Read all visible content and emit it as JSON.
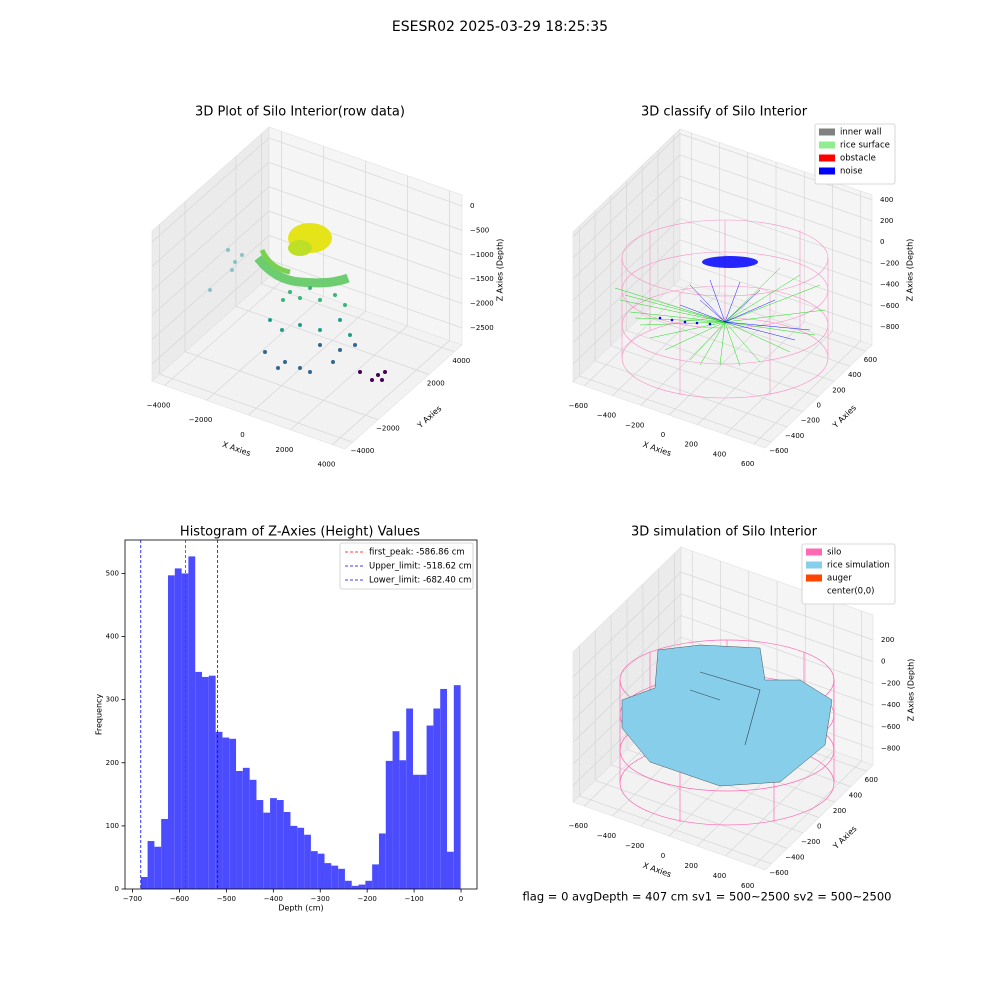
{
  "suptitle": "ESESR02 2025-03-29 18:25:35",
  "footer_text": "flag = 0     avgDepth = 407 cm  sv1 = 500~2500  sv2 = 500~2500",
  "chart_data": [
    {
      "type": "3d",
      "title": "3D Plot of Silo Interior(row data)",
      "x_label": "X Axies",
      "y_label": "Y Axies",
      "z_label": "Z Axies (Depth)",
      "xlim": [
        -4600,
        4600
      ],
      "ylim": [
        -4600,
        4600
      ],
      "zlim": [
        -2850,
        225
      ],
      "xticks": [
        {
          "value": -4000,
          "label": "−4000"
        },
        {
          "value": -2000,
          "label": "−2000"
        },
        0,
        2000,
        4000
      ],
      "yticks": [
        {
          "value": -4000,
          "label": "−4000"
        },
        {
          "value": -2000,
          "label": "−2000"
        },
        2000,
        4000
      ],
      "zticks": [
        0,
        {
          "value": -500,
          "label": "−500"
        },
        {
          "value": -1000,
          "label": "−1000"
        },
        {
          "value": -1500,
          "label": "−1500"
        },
        {
          "value": -2000,
          "label": "−2000"
        },
        {
          "value": -2500,
          "label": "−2500"
        }
      ]
    },
    {
      "type": "3d",
      "title": "3D classify of Silo Interior",
      "x_label": "X Axies",
      "y_label": "Y Axies",
      "z_label": "Z Axies (Depth)",
      "xlim": [
        -680,
        680
      ],
      "ylim": [
        -680,
        680
      ],
      "zlim": [
        -970,
        445
      ],
      "xticks": [
        {
          "value": -600,
          "label": "−600"
        },
        {
          "value": -400,
          "label": "−400"
        },
        {
          "value": -200,
          "label": "−200"
        },
        0,
        200,
        400,
        600
      ],
      "yticks": [
        {
          "value": -600,
          "label": "−600"
        },
        {
          "value": -400,
          "label": "−400"
        },
        {
          "value": -200,
          "label": "−200"
        },
        0,
        200,
        400,
        600
      ],
      "zticks": [
        400,
        200,
        0,
        {
          "value": -200,
          "label": "−200"
        },
        {
          "value": -400,
          "label": "−400"
        },
        {
          "value": -600,
          "label": "−600"
        },
        {
          "value": -800,
          "label": "−800"
        }
      ],
      "legend": [
        {
          "name": "inner wall",
          "color": "#808080"
        },
        {
          "name": "rice surface",
          "color": "#90ee90"
        },
        {
          "name": "obstacle",
          "color": "#ff0000"
        },
        {
          "name": "noise",
          "color": "#0000ff"
        }
      ]
    },
    {
      "type": "histogram",
      "title": "Histogram of Z-Axies (Height) Values",
      "x_label": "Depth (cm)",
      "y_label": "Frequency",
      "color": "#4c4cff",
      "bins": [
        -682.4,
        -667.9,
        -653.4,
        -638.9,
        -624.4,
        -609.9,
        -595.4,
        -580.9,
        -566.4,
        -551.9,
        -537.4,
        -522.9,
        -508.4,
        -493.9,
        -479.4,
        -464.9,
        -450.4,
        -435.9,
        -421.4,
        -406.9,
        -392.4,
        -377.9,
        -363.4,
        -348.9,
        -334.4,
        -319.9,
        -305.4,
        -290.9,
        -276.4,
        -261.9,
        -247.4,
        -232.9,
        -218.4,
        -203.9,
        -189.4,
        -174.9,
        -160.4,
        -145.9,
        -131.4,
        -116.9,
        -102.4,
        -87.9,
        -73.4,
        -58.9,
        -44.4,
        -29.9,
        -15.4,
        -0.9
      ],
      "counts": [
        19,
        76,
        67,
        111,
        497,
        508,
        500,
        527,
        344,
        336,
        338,
        249,
        240,
        238,
        187,
        192,
        173,
        141,
        121,
        144,
        141,
        122,
        100,
        97,
        86,
        60,
        56,
        41,
        37,
        32,
        13,
        5,
        7,
        13,
        39,
        88,
        203,
        250,
        204,
        286,
        181,
        181,
        259,
        286,
        317,
        59,
        323
      ],
      "xlim": [
        -716,
        34
      ],
      "ylim": [
        0,
        553
      ],
      "xticks": [
        {
          "value": -700,
          "label": "−700"
        },
        {
          "value": -600,
          "label": "−600"
        },
        {
          "value": -500,
          "label": "−500"
        },
        {
          "value": -400,
          "label": "−400"
        },
        {
          "value": -300,
          "label": "−300"
        },
        {
          "value": -200,
          "label": "−200"
        },
        {
          "value": -100,
          "label": "−100"
        },
        0
      ],
      "yticks": [
        0,
        100,
        200,
        300,
        400,
        500
      ],
      "vlines": [
        {
          "label": "first_peak: -586.86 cm",
          "value": -586.86,
          "color": "#ff0000"
        },
        {
          "label": "Upper_limit: -518.62 cm",
          "value": -518.62,
          "color": "#0000ff"
        },
        {
          "label": "Lower_limit: -682.40 cm",
          "value": -682.4,
          "color": "#0000ff"
        }
      ]
    },
    {
      "type": "3d",
      "title": "3D simulation of Silo Interior",
      "x_label": "X Axies",
      "y_label": "Y Axies",
      "z_label": "Z Axies (Depth)",
      "xlim": [
        -680,
        680
      ],
      "ylim": [
        -680,
        680
      ],
      "zlim": [
        -950,
        430
      ],
      "xticks": [
        {
          "value": -600,
          "label": "−600"
        },
        {
          "value": -400,
          "label": "−400"
        },
        {
          "value": -200,
          "label": "−200"
        },
        0,
        200,
        400,
        600
      ],
      "yticks": [
        {
          "value": -600,
          "label": "−600"
        },
        {
          "value": -400,
          "label": "−400"
        },
        {
          "value": -200,
          "label": "−200"
        },
        0,
        200,
        400,
        600
      ],
      "zticks": [
        200,
        0,
        {
          "value": -200,
          "label": "−200"
        },
        {
          "value": -400,
          "label": "−400"
        },
        {
          "value": -600,
          "label": "−600"
        },
        {
          "value": -800,
          "label": "−800"
        }
      ],
      "legend": [
        {
          "name": "silo",
          "color": "#ff69b4"
        },
        {
          "name": "rice simulation",
          "color": "#87ceeb"
        },
        {
          "name": "auger",
          "color": "#ff4500"
        },
        {
          "name": "center(0,0)",
          "color": "#ffffff"
        }
      ]
    }
  ]
}
